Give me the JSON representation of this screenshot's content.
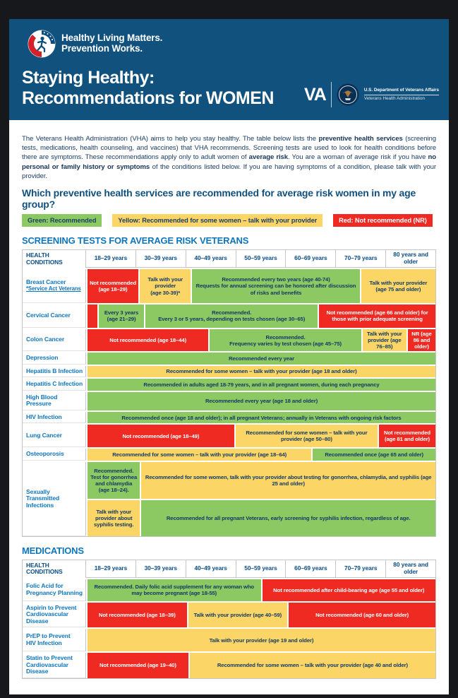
{
  "banner": {
    "logo_line1": "Healthy Living Matters.",
    "logo_line2": "Prevention Works.",
    "title_line1": "Staying Healthy:",
    "title_line2": "Recommendations for WOMEN",
    "va_acronym": "VA",
    "va_dept": "U.S. Department of Veterans Affairs",
    "va_admin": "Veterans Health Administration"
  },
  "intro_segments": [
    {
      "bold": false,
      "text": "The Veterans Health Administration (VHA) aims to help you stay healthy. The table below lists the "
    },
    {
      "bold": true,
      "text": "preventive health services"
    },
    {
      "bold": false,
      "text": " (screening tests, medications, health counseling, and vaccines) that VHA recommends. Screening tests are used to look for health conditions before there are symptoms. These recommendations apply only to adult women of "
    },
    {
      "bold": true,
      "text": "average risk"
    },
    {
      "bold": false,
      "text": ". You are a woman of average risk if you have "
    },
    {
      "bold": true,
      "text": "no personal or family history or symptoms"
    },
    {
      "bold": false,
      "text": " of the conditions listed below. If you are having symptoms of a condition, please talk with your provider."
    }
  ],
  "question_heading": "Which preventive health services are recommended for average risk women in my age group?",
  "legend": [
    {
      "type": "green",
      "label": "Green: Recommended"
    },
    {
      "type": "yellow",
      "label": "Yellow: Recommended for some women – talk with your provider"
    },
    {
      "type": "red",
      "label": "Red: Not recommended (NR)"
    }
  ],
  "columns": [
    "HEALTH CONDITIONS",
    "18–29 years",
    "30–39 years",
    "40–49 years",
    "50–59 years",
    "60–69 years",
    "70–79 years",
    "80 years and older"
  ],
  "status_colors": {
    "green": "#8dc963",
    "yellow": "#fcd567",
    "red": "#ee2a23",
    "banner_blue": "#11517e",
    "heading_blue": "#0e76bc",
    "navy_text": "#123a64"
  },
  "tables": [
    {
      "heading": "SCREENING TESTS FOR AVERAGE RISK VETERANS",
      "rows": [
        {
          "condition": "Breast Cancer",
          "note": "*Service Act Veterans",
          "height": 48,
          "cells": [
            {
              "type": "red",
              "span": 1,
              "text": "Not recommended (age 18–29)"
            },
            {
              "type": "yellow",
              "span": 1,
              "text": "Talk with your provider\n(age 30-39)*"
            },
            {
              "type": "green",
              "span": 3.5,
              "text": "Recommended every two years (age 40-74)\nRequests for annual screening can be honored after discussion of risks and benefits"
            },
            {
              "type": "yellow",
              "span": 1.5,
              "text": "Talk with your provider\n(age 75 and older)"
            }
          ]
        },
        {
          "condition": "Cervical Cancer",
          "height": 33,
          "cells": [
            {
              "type": "red",
              "span": 0.12,
              "text": ""
            },
            {
              "type": "green",
              "span": 0.88,
              "text": "Every 3 years\n(age 21–29)"
            },
            {
              "type": "green",
              "span": 3.6,
              "text": "Recommended.\nEvery 3 or 5 years, depending on tests chosen (age 30–65)"
            },
            {
              "type": "red",
              "span": 2.4,
              "text": "Not recommended (age 66 and older) for those with prior adequate screening"
            }
          ]
        },
        {
          "condition": "Colon Cancer",
          "height": 31,
          "cells": [
            {
              "type": "red",
              "span": 2.5,
              "text": "Not recommended (age 18–44)"
            },
            {
              "type": "green",
              "span": 3.15,
              "text": "Recommended.\nFrequency varies by test chosen (age 45–75)"
            },
            {
              "type": "yellow",
              "span": 0.85,
              "text": "Talk with your provider (age 76–85)"
            },
            {
              "type": "red",
              "span": 0.5,
              "text": "NR (age 86 and older)"
            }
          ]
        },
        {
          "condition": "Depression",
          "height": 16,
          "cells": [
            {
              "type": "green",
              "span": 7,
              "text": "Recommended every year"
            }
          ]
        },
        {
          "condition": "Hepatitis B Infection",
          "height": 16,
          "cells": [
            {
              "type": "yellow",
              "span": 7,
              "text": "Recommended for some women – talk with your provider (age 18 and older)"
            }
          ]
        },
        {
          "condition": "Hepatitis C Infection",
          "height": 16,
          "cells": [
            {
              "type": "green",
              "span": 7,
              "text": "Recommended in adults aged 18-79 years, and in all pregnant women, during each pregnancy"
            }
          ]
        },
        {
          "condition": "High Blood Pressure",
          "height": 16,
          "cells": [
            {
              "type": "green",
              "span": 7,
              "text": "Recommended every year (age 18 and older)"
            }
          ]
        },
        {
          "condition": "HIV Infection",
          "height": 16,
          "cells": [
            {
              "type": "green",
              "span": 7,
              "text": "Recommended once (age 18 and older); in all pregnant Veterans;  annually in Veterans with ongoing risk factors"
            }
          ]
        },
        {
          "condition": "Lung Cancer",
          "height": 32,
          "cells": [
            {
              "type": "red",
              "span": 3,
              "text": "Not recommended (age 18–49)"
            },
            {
              "type": "yellow",
              "span": 2.9,
              "text": "Recommended for some women – talk with your provider (age 50–80)"
            },
            {
              "type": "red",
              "span": 1.1,
              "text": "Not recommended (age 81 and older)"
            }
          ]
        },
        {
          "condition": "Osteoporosis",
          "height": 16,
          "cells": [
            {
              "type": "yellow",
              "span": 4.55,
              "text": "Recommended for some women – talk with your provider (age 18–64)"
            },
            {
              "type": "green",
              "span": 2.45,
              "text": "Recommended once (age 65 and older)"
            }
          ]
        },
        {
          "condition": "Sexually Transmitted Infections",
          "subrows": [
            {
              "height": 52,
              "cells": [
                {
                  "type": "green",
                  "span": 1,
                  "text": "Recommended. Test for gonorrhea and chlamydia (age 18–24)."
                },
                {
                  "type": "yellow",
                  "span": 6,
                  "text": "Recommended for some women, talk with your provider about testing for gonorrhea, chlamydia, and syphilis (age 25 and older)"
                }
              ]
            },
            {
              "height": 51,
              "cells": [
                {
                  "type": "yellow",
                  "span": 1,
                  "text": "Talk with your provider about syphilis testing."
                },
                {
                  "type": "green",
                  "span": 6,
                  "text": "Recommended for all pregnant Veterans, early screening for syphilis infection, regardless of age."
                }
              ]
            }
          ]
        }
      ]
    },
    {
      "heading": "MEDICATIONS",
      "rows": [
        {
          "condition": "Folic Acid for Pregnancy Planning",
          "height": 31,
          "cells": [
            {
              "type": "green",
              "span": 3.5,
              "text": "Recommended. Daily folic acid supplement  for any woman who may become pregnant (age 18-55)"
            },
            {
              "type": "red",
              "span": 3.5,
              "text": "Not recommended after child-bearing age (age 55 and older)"
            }
          ]
        },
        {
          "condition": "Aspirin to Prevent Cardiovascular Disease",
          "height": 26,
          "cells": [
            {
              "type": "red",
              "span": 2,
              "text": "Not recommended (age 18–39)"
            },
            {
              "type": "yellow",
              "span": 2,
              "text": "Talk with your provider (age 40–59)"
            },
            {
              "type": "red",
              "span": 3,
              "text": "Not recommended (age 60 and older)"
            }
          ]
        },
        {
          "condition": "PrEP to Prevent\nHIV Infection",
          "height": 32,
          "cells": [
            {
              "type": "yellow",
              "span": 7,
              "text": "Talk with your provider (age 19 and older)"
            }
          ]
        },
        {
          "condition": "Statin to Prevent Cardiovascular Disease",
          "height": 31,
          "cells": [
            {
              "type": "red",
              "span": 2,
              "text": "Not recommended (age 19–40)"
            },
            {
              "type": "yellow",
              "span": 5,
              "text": "Recommended for some women – talk with your provider (age 40 and older)"
            }
          ]
        }
      ]
    }
  ]
}
